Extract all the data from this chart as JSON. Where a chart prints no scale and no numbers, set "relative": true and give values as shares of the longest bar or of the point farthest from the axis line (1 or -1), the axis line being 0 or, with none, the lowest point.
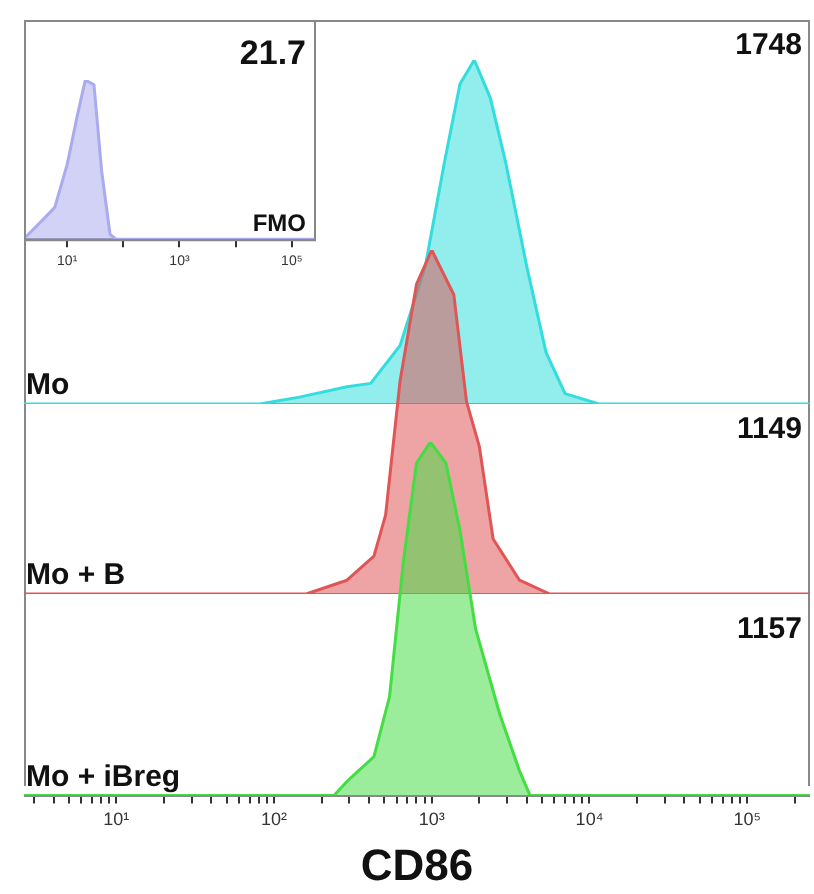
{
  "chart_data": [
    {
      "type": "area",
      "relative": true,
      "log": "x",
      "xlim": [
        1.7,
        270000
      ],
      "xticks": [
        {
          "value": 10,
          "label": "10¹"
        },
        {
          "value": 100,
          "label": null
        },
        {
          "value": 1000,
          "label": "10³"
        },
        {
          "value": 10000,
          "label": null
        },
        {
          "value": 100000,
          "label": "10⁵"
        }
      ],
      "tick_labels": "x",
      "annotations": [
        "21.7"
      ],
      "x": [
        1.7,
        1.9,
        3.4,
        6,
        10,
        15,
        21,
        30,
        41,
        58,
        74,
        270000
      ],
      "series": [
        {
          "name": "FMO",
          "color": "#aaaaee",
          "values": [
            0.02,
            0.02,
            0.11,
            0.2,
            0.47,
            0.77,
            1.0,
            0.97,
            0.43,
            0.03,
            0,
            0
          ]
        }
      ]
    },
    {
      "type": "area",
      "relative": true,
      "log": "x",
      "xlim": [
        2.6,
        250000
      ],
      "tick_labels": false,
      "annotations": [
        "1748"
      ],
      "x": [
        2.6,
        81,
        145,
        290,
        410,
        630,
        910,
        1200,
        1510,
        1860,
        2350,
        2950,
        4000,
        5300,
        7000,
        11500,
        250000
      ],
      "series": [
        {
          "name": "Mo",
          "color": "#33dddd",
          "values": [
            0,
            0,
            0.02,
            0.05,
            0.06,
            0.17,
            0.4,
            0.7,
            0.93,
            1.0,
            0.89,
            0.7,
            0.4,
            0.15,
            0.03,
            0,
            0
          ]
        }
      ]
    },
    {
      "type": "area",
      "relative": true,
      "log": "x",
      "xlim": [
        2.6,
        250000
      ],
      "tick_labels": false,
      "annotations": [
        "1149"
      ],
      "x": [
        2.6,
        160,
        290,
        430,
        510,
        630,
        800,
        1000,
        1380,
        1660,
        2000,
        2450,
        3600,
        5600,
        250000
      ],
      "series": [
        {
          "name": "Mo + B",
          "color": "#e05555",
          "values": [
            0,
            0,
            0.04,
            0.11,
            0.23,
            0.62,
            0.9,
            1.0,
            0.87,
            0.56,
            0.43,
            0.16,
            0.04,
            0,
            0
          ]
        }
      ]
    },
    {
      "type": "area",
      "relative": true,
      "log": "x",
      "xlim": [
        2.6,
        250000
      ],
      "tick_labels": "x",
      "xlabel": "CD86",
      "annotations": [
        "1157"
      ],
      "xticks": [
        {
          "value": 3,
          "label": null
        },
        {
          "value": 4,
          "label": null
        },
        {
          "value": 5,
          "label": null
        },
        {
          "value": 6,
          "label": null
        },
        {
          "value": 7,
          "label": null
        },
        {
          "value": 8,
          "label": null
        },
        {
          "value": 9,
          "label": null
        },
        {
          "value": 10,
          "label": "10¹"
        },
        {
          "value": 20,
          "label": null
        },
        {
          "value": 30,
          "label": null
        },
        {
          "value": 40,
          "label": null
        },
        {
          "value": 50,
          "label": null
        },
        {
          "value": 60,
          "label": null
        },
        {
          "value": 70,
          "label": null
        },
        {
          "value": 80,
          "label": null
        },
        {
          "value": 90,
          "label": null
        },
        {
          "value": 100,
          "label": "10²"
        },
        {
          "value": 200,
          "label": null
        },
        {
          "value": 300,
          "label": null
        },
        {
          "value": 400,
          "label": null
        },
        {
          "value": 500,
          "label": null
        },
        {
          "value": 600,
          "label": null
        },
        {
          "value": 700,
          "label": null
        },
        {
          "value": 800,
          "label": null
        },
        {
          "value": 900,
          "label": null
        },
        {
          "value": 1000,
          "label": "10³"
        },
        {
          "value": 2000,
          "label": null
        },
        {
          "value": 3000,
          "label": null
        },
        {
          "value": 4000,
          "label": null
        },
        {
          "value": 5000,
          "label": null
        },
        {
          "value": 6000,
          "label": null
        },
        {
          "value": 7000,
          "label": null
        },
        {
          "value": 8000,
          "label": null
        },
        {
          "value": 9000,
          "label": null
        },
        {
          "value": 10000,
          "label": "10⁴"
        },
        {
          "value": 20000,
          "label": null
        },
        {
          "value": 30000,
          "label": null
        },
        {
          "value": 40000,
          "label": null
        },
        {
          "value": 50000,
          "label": null
        },
        {
          "value": 60000,
          "label": null
        },
        {
          "value": 70000,
          "label": null
        },
        {
          "value": 80000,
          "label": null
        },
        {
          "value": 90000,
          "label": null
        },
        {
          "value": 100000,
          "label": "10⁵"
        },
        {
          "value": 200000,
          "label": null
        }
      ],
      "x": [
        2.6,
        240,
        290,
        430,
        540,
        660,
        800,
        980,
        1230,
        1510,
        1900,
        2700,
        3600,
        4200,
        250000
      ],
      "series": [
        {
          "name": "Mo + iBreg",
          "color": "#44dd44",
          "values": [
            0,
            0,
            0.04,
            0.11,
            0.28,
            0.66,
            0.94,
            1.0,
            0.94,
            0.75,
            0.47,
            0.23,
            0.07,
            0,
            0
          ]
        }
      ]
    }
  ]
}
